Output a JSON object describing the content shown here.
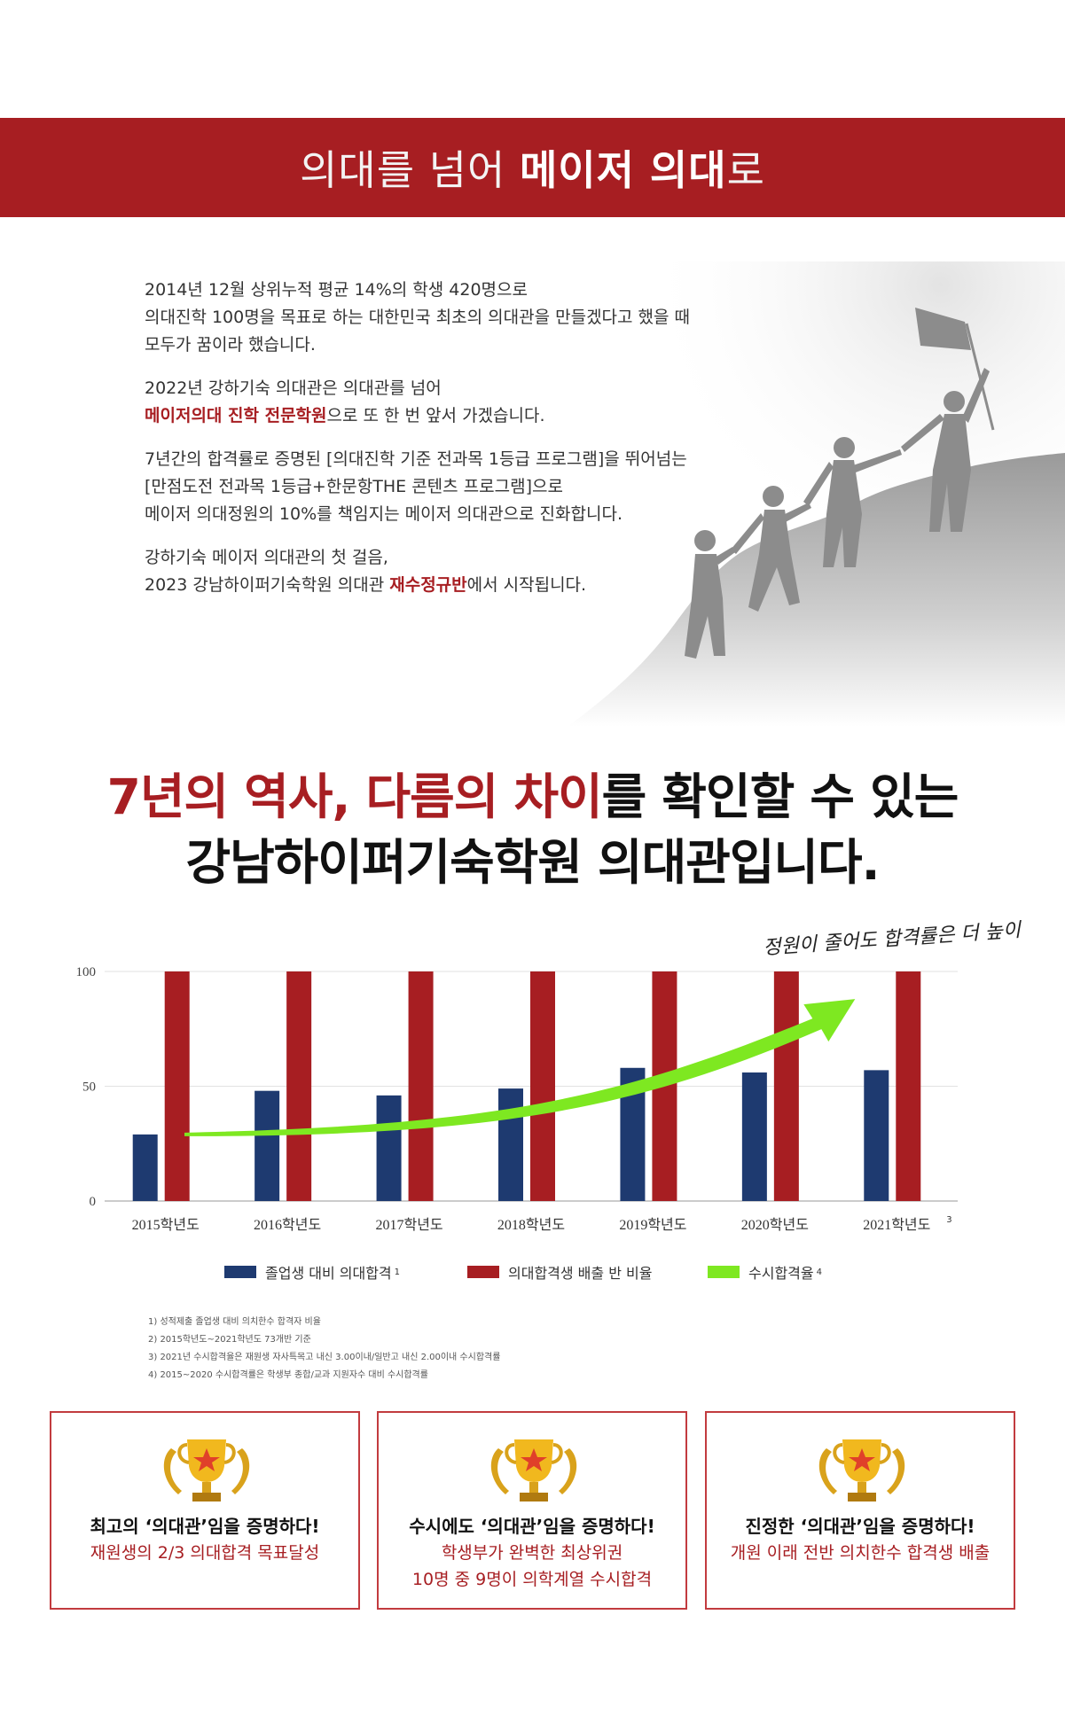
{
  "banner": {
    "title_light_1": "의대를 넘어 ",
    "title_bold": "메이저 의대",
    "title_light_2": "로"
  },
  "intro": {
    "p1": [
      "2014년 12월 상위누적 평균 14%의 학생 420명으로",
      "의대진학 100명을 목표로 하는 대한민국 최초의 의대관을 만들겠다고 했을 때",
      "모두가 꿈이라 했습니다."
    ],
    "p2_line1": "2022년 강하기숙 의대관은 의대관를 넘어",
    "p2_line2_hl": "메이저의대 진학 전문학원",
    "p2_line2_rest": "으로 또 한 번 앞서 가겠습니다.",
    "p3": [
      "7년간의 합격률로 증명된 [의대진학 기준 전과목 1등급 프로그램]을 뛰어넘는",
      "[만점도전 전과목 1등급+한문항THE 콘텐츠 프로그램]으로",
      "메이저 의대정원의 10%를 책임지는 메이저 의대관으로 진화합니다."
    ],
    "p4_line1": "강하기숙 메이저 의대관의 첫 걸음,",
    "p4_line2_pre": "2023 강남하이퍼기숙학원 의대관 ",
    "p4_line2_hl": "재수정규반",
    "p4_line2_post": "에서 시작됩니다."
  },
  "headline": {
    "line1_red": "7년의 역사, 다름의 차이",
    "line1_rest": "를 확인할 수 있는",
    "line2": "강남하이퍼기숙학원 의대관입니다."
  },
  "chart_note": "정원이 줄어도 합격률은 더 높이",
  "chart_data": {
    "type": "bar",
    "categories": [
      "2015학년도",
      "2016학년도",
      "2017학년도",
      "2018학년도",
      "2019학년도",
      "2020학년도",
      "2021학년도"
    ],
    "last_category_superscript": "3",
    "ylim": [
      0,
      100
    ],
    "yticks": [
      0,
      50,
      100
    ],
    "grid": true,
    "series": [
      {
        "name": "졸업생 대비 의대합격",
        "superscript": "1",
        "color": "#1e3a70",
        "values": [
          29,
          48,
          46,
          49,
          58,
          56,
          57
        ]
      },
      {
        "name": "의대합격생 배출 반 비율",
        "superscript": "",
        "color": "#a71e22",
        "values": [
          100,
          100,
          100,
          100,
          100,
          100,
          100
        ]
      }
    ],
    "trend": {
      "name": "수시합격율",
      "superscript": "4",
      "color": "#7ee821",
      "shape": "rising-arrow"
    }
  },
  "footnotes": [
    "1) 성적제출 졸업생 대비 의치한수 합격자 비율",
    "2) 2015학년도~2021학년도 73개반 기준",
    "3) 2021년 수시합격율은 재원생 자사특목고 내신 3.00이내/일반고 내신 2.00이내 수시합격률",
    "4) 2015~2020 수시합격률은 학생부 종합/교과 지원자수 대비 수시합격률"
  ],
  "cards": [
    {
      "title": "최고의 ‘의대관’임을 증명하다!",
      "desc": [
        "재원생의 2/3 의대합격 목표달성"
      ]
    },
    {
      "title": "수시에도 ‘의대관’임을 증명하다!",
      "desc": [
        "학생부가 완벽한 최상위권",
        "10명 중 9명이 의학계열 수시합격"
      ]
    },
    {
      "title": "진정한 ‘의대관’임을 증명하다!",
      "desc": [
        "개원 이래 전반 의치한수 합격생 배출"
      ]
    }
  ],
  "colors": {
    "brand_red": "#a71e22",
    "navy": "#1e3a70",
    "green": "#7ee821"
  }
}
